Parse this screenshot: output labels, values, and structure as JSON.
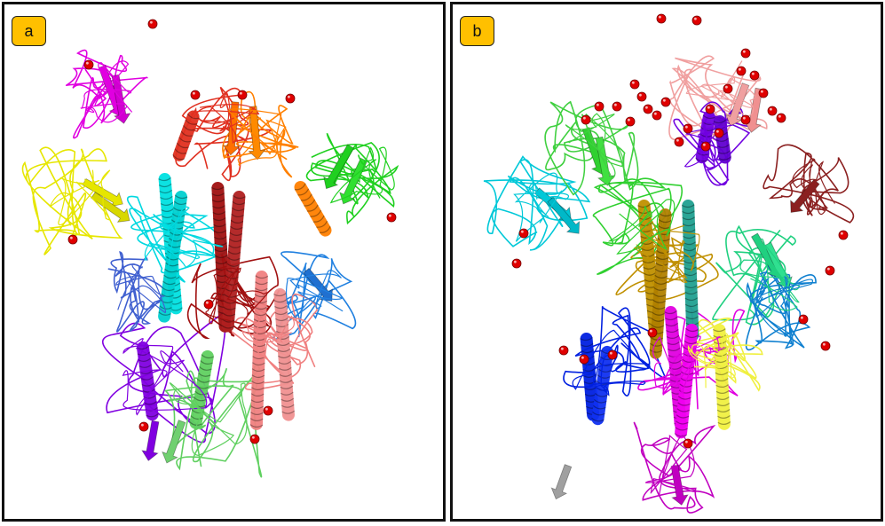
{
  "panels": [
    {
      "label": "a"
    },
    {
      "label": "b"
    }
  ],
  "colors": {
    "badge": "#ffc000",
    "border": "#111111",
    "glycan_sphere": "#e00000"
  }
}
